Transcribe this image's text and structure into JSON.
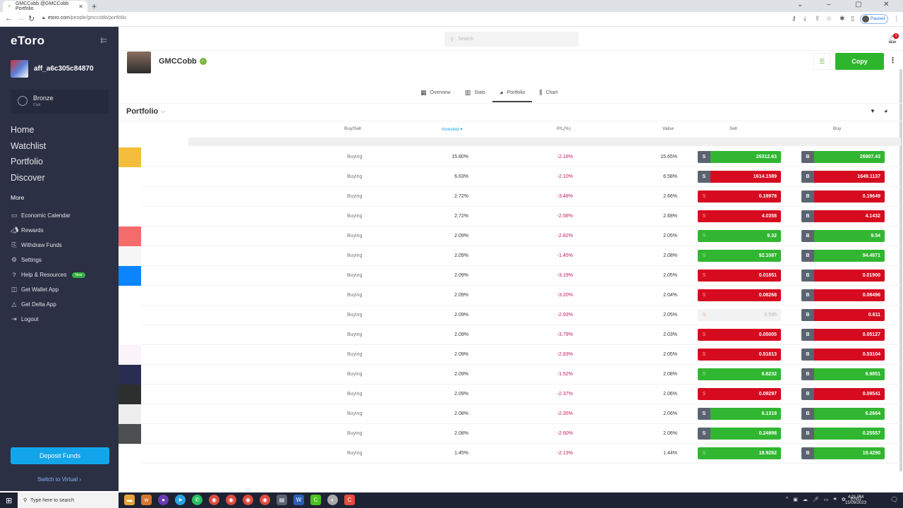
{
  "browser": {
    "tab_title": "GMCCobb @GMCCobb Portfolio",
    "url_domain": "etoro.com",
    "url_path": "/people/gmccobb/portfolio",
    "profile_status": "Paused"
  },
  "sidebar": {
    "logo": "eToro",
    "username": "aff_a6c305c84870",
    "club": {
      "title": "Bronze",
      "subtitle": "Club"
    },
    "main_nav": [
      "Home",
      "Watchlist",
      "Portfolio",
      "Discover"
    ],
    "more_heading": "More",
    "more_items": [
      {
        "label": "Economic Calendar",
        "icon": "calendar-icon"
      },
      {
        "label": "Rewards",
        "icon": "megaphone-icon"
      },
      {
        "label": "Withdraw Funds",
        "icon": "withdraw-icon"
      },
      {
        "label": "Settings",
        "icon": "gear-icon"
      },
      {
        "label": "Help & Resources",
        "icon": "help-icon",
        "badge": "New"
      },
      {
        "label": "Get Wallet App",
        "icon": "wallet-icon"
      },
      {
        "label": "Get Delta App",
        "icon": "delta-icon"
      },
      {
        "label": "Logout",
        "icon": "logout-icon"
      }
    ],
    "deposit_label": "Deposit Funds",
    "switch_label": "Switch to Virtual ›"
  },
  "header": {
    "search_placeholder": "Search",
    "notification_count": "3"
  },
  "profile": {
    "name": "GMCCobb",
    "copy_label": "Copy"
  },
  "tabs": [
    {
      "label": "Overview",
      "icon": "grid-icon",
      "active": false
    },
    {
      "label": "Stats",
      "icon": "bar-chart-icon",
      "active": false
    },
    {
      "label": "Portfolio",
      "icon": "pie-chart-icon",
      "active": true
    },
    {
      "label": "Chart",
      "icon": "candlestick-icon",
      "active": false
    }
  ],
  "portfolio": {
    "title": "Portfolio",
    "columns": {
      "buysell": "Buy/Sell",
      "invested": "Invested ▾",
      "pl": "P/L(%)",
      "value": "Value",
      "sell": "Sell",
      "buy": "Buy"
    },
    "rows": [
      {
        "logo_color": "#f4bd3b",
        "direction": "Buying",
        "invested": "15.80%",
        "pl": "-2.18%",
        "value": "15.65%",
        "sell": "26312.63",
        "sell_style": "green",
        "sell_dark": true,
        "buy": "26907.43",
        "buy_style": "green"
      },
      {
        "logo_color": "#ffffff",
        "direction": "Buying",
        "invested": "6.63%",
        "pl": "-2.10%",
        "value": "6.58%",
        "sell": "1614.1589",
        "sell_style": "red",
        "sell_dark": true,
        "buy": "1649.1137",
        "buy_style": "red"
      },
      {
        "logo_color": "#ffffff",
        "direction": "Buying",
        "invested": "2.72%",
        "pl": "-3.48%",
        "value": "2.66%",
        "sell": "0.18978",
        "sell_style": "red",
        "sell_dark": false,
        "buy": "0.19649",
        "buy_style": "red"
      },
      {
        "logo_color": "#ffffff",
        "direction": "Buying",
        "invested": "2.72%",
        "pl": "-2.58%",
        "value": "2.68%",
        "sell": "4.0358",
        "sell_style": "red",
        "sell_dark": false,
        "buy": "4.1432",
        "buy_style": "red"
      },
      {
        "logo_color": "#f56b6b",
        "direction": "Buying",
        "invested": "2.09%",
        "pl": "-2.82%",
        "value": "2.05%",
        "sell": "9.32",
        "sell_style": "green",
        "sell_dark": false,
        "buy": "9.54",
        "buy_style": "green"
      },
      {
        "logo_color": "#f7f7f7",
        "direction": "Buying",
        "invested": "2.09%",
        "pl": "-1.45%",
        "value": "2.08%",
        "sell": "92.1087",
        "sell_style": "green",
        "sell_dark": false,
        "buy": "94.4871",
        "buy_style": "green"
      },
      {
        "logo_color": "#0a84ff",
        "direction": "Buying",
        "invested": "2.09%",
        "pl": "-3.19%",
        "value": "2.05%",
        "sell": "0.01851",
        "sell_style": "red",
        "sell_dark": false,
        "buy": "0.01900",
        "buy_style": "red"
      },
      {
        "logo_color": "#ffffff",
        "direction": "Buying",
        "invested": "2.09%",
        "pl": "-3.20%",
        "value": "2.04%",
        "sell": "0.08268",
        "sell_style": "red",
        "sell_dark": false,
        "buy": "0.08496",
        "buy_style": "red"
      },
      {
        "logo_color": "#ffffff",
        "direction": "Buying",
        "invested": "2.09%",
        "pl": "-2.93%",
        "value": "2.05%",
        "sell": "0.596",
        "sell_style": "grey",
        "sell_dark": false,
        "buy": "0.611",
        "buy_style": "red"
      },
      {
        "logo_color": "#ffffff",
        "direction": "Buying",
        "invested": "2.09%",
        "pl": "-3.79%",
        "value": "2.03%",
        "sell": "0.05005",
        "sell_style": "red",
        "sell_dark": false,
        "buy": "0.05127",
        "buy_style": "red"
      },
      {
        "logo_color": "#fdf3fb",
        "direction": "Buying",
        "invested": "2.09%",
        "pl": "-2.83%",
        "value": "2.05%",
        "sell": "0.51813",
        "sell_style": "red",
        "sell_dark": false,
        "buy": "0.53104",
        "buy_style": "red"
      },
      {
        "logo_color": "#2a2d52",
        "direction": "Buying",
        "invested": "2.09%",
        "pl": "-1.52%",
        "value": "2.08%",
        "sell": "6.8232",
        "sell_style": "green",
        "sell_dark": false,
        "buy": "6.9851",
        "buy_style": "green"
      },
      {
        "logo_color": "#2c2f2e",
        "direction": "Buying",
        "invested": "2.09%",
        "pl": "-2.37%",
        "value": "2.06%",
        "sell": "0.09297",
        "sell_style": "red",
        "sell_dark": false,
        "buy": "0.09541",
        "buy_style": "red"
      },
      {
        "logo_color": "#eeeeee",
        "direction": "Buying",
        "invested": "2.08%",
        "pl": "-2.35%",
        "value": "2.06%",
        "sell": "6.1319",
        "sell_style": "green",
        "sell_dark": true,
        "buy": "6.2664",
        "buy_style": "green"
      },
      {
        "logo_color": "#4c4e4f",
        "direction": "Buying",
        "invested": "2.08%",
        "pl": "-2.60%",
        "value": "2.06%",
        "sell": "0.24998",
        "sell_style": "green",
        "sell_dark": true,
        "buy": "0.25557",
        "buy_style": "green"
      },
      {
        "logo_color": "#ffffff",
        "direction": "Buying",
        "invested": "1.45%",
        "pl": "-2.13%",
        "value": "1.44%",
        "sell": "18.9282",
        "sell_style": "green",
        "sell_dark": false,
        "buy": "19.4290",
        "buy_style": "green"
      }
    ]
  },
  "taskbar": {
    "search_placeholder": "Type here to search",
    "language": "ENG",
    "time": "4:21 PM",
    "date": "15/09/2023"
  }
}
